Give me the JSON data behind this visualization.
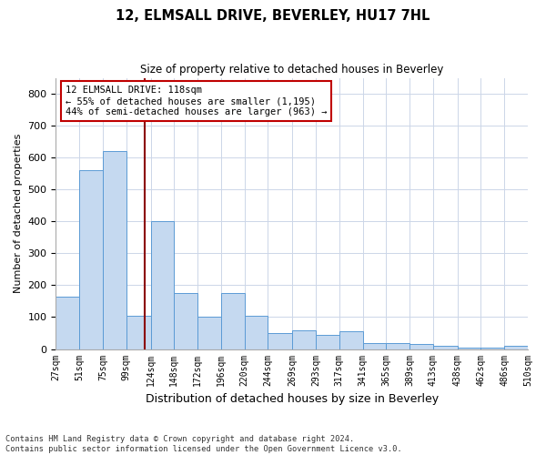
{
  "title": "12, ELMSALL DRIVE, BEVERLEY, HU17 7HL",
  "subtitle": "Size of property relative to detached houses in Beverley",
  "xlabel": "Distribution of detached houses by size in Beverley",
  "ylabel": "Number of detached properties",
  "footer_line1": "Contains HM Land Registry data © Crown copyright and database right 2024.",
  "footer_line2": "Contains public sector information licensed under the Open Government Licence v3.0.",
  "bin_edges": [
    27,
    51,
    75,
    99,
    124,
    148,
    172,
    196,
    220,
    244,
    269,
    293,
    317,
    341,
    365,
    389,
    413,
    438,
    462,
    486,
    510
  ],
  "bar_heights": [
    165,
    560,
    620,
    105,
    400,
    175,
    100,
    175,
    105,
    50,
    60,
    45,
    55,
    20,
    20,
    15,
    10,
    5,
    5,
    10
  ],
  "bar_color": "#c5d9f0",
  "bar_edge_color": "#5b9bd5",
  "tick_labels": [
    "27sqm",
    "51sqm",
    "75sqm",
    "99sqm",
    "124sqm",
    "148sqm",
    "172sqm",
    "196sqm",
    "220sqm",
    "244sqm",
    "269sqm",
    "293sqm",
    "317sqm",
    "341sqm",
    "365sqm",
    "389sqm",
    "413sqm",
    "438sqm",
    "462sqm",
    "486sqm",
    "510sqm"
  ],
  "property_line_x": 118,
  "property_line_color": "#8b0000",
  "annotation_text": "12 ELMSALL DRIVE: 118sqm\n← 55% of detached houses are smaller (1,195)\n44% of semi-detached houses are larger (963) →",
  "annotation_box_color": "#ffffff",
  "annotation_box_edge": "#c00000",
  "ylim": [
    0,
    850
  ],
  "yticks": [
    0,
    100,
    200,
    300,
    400,
    500,
    600,
    700,
    800
  ],
  "background_color": "#ffffff",
  "grid_color": "#ccd6e8"
}
